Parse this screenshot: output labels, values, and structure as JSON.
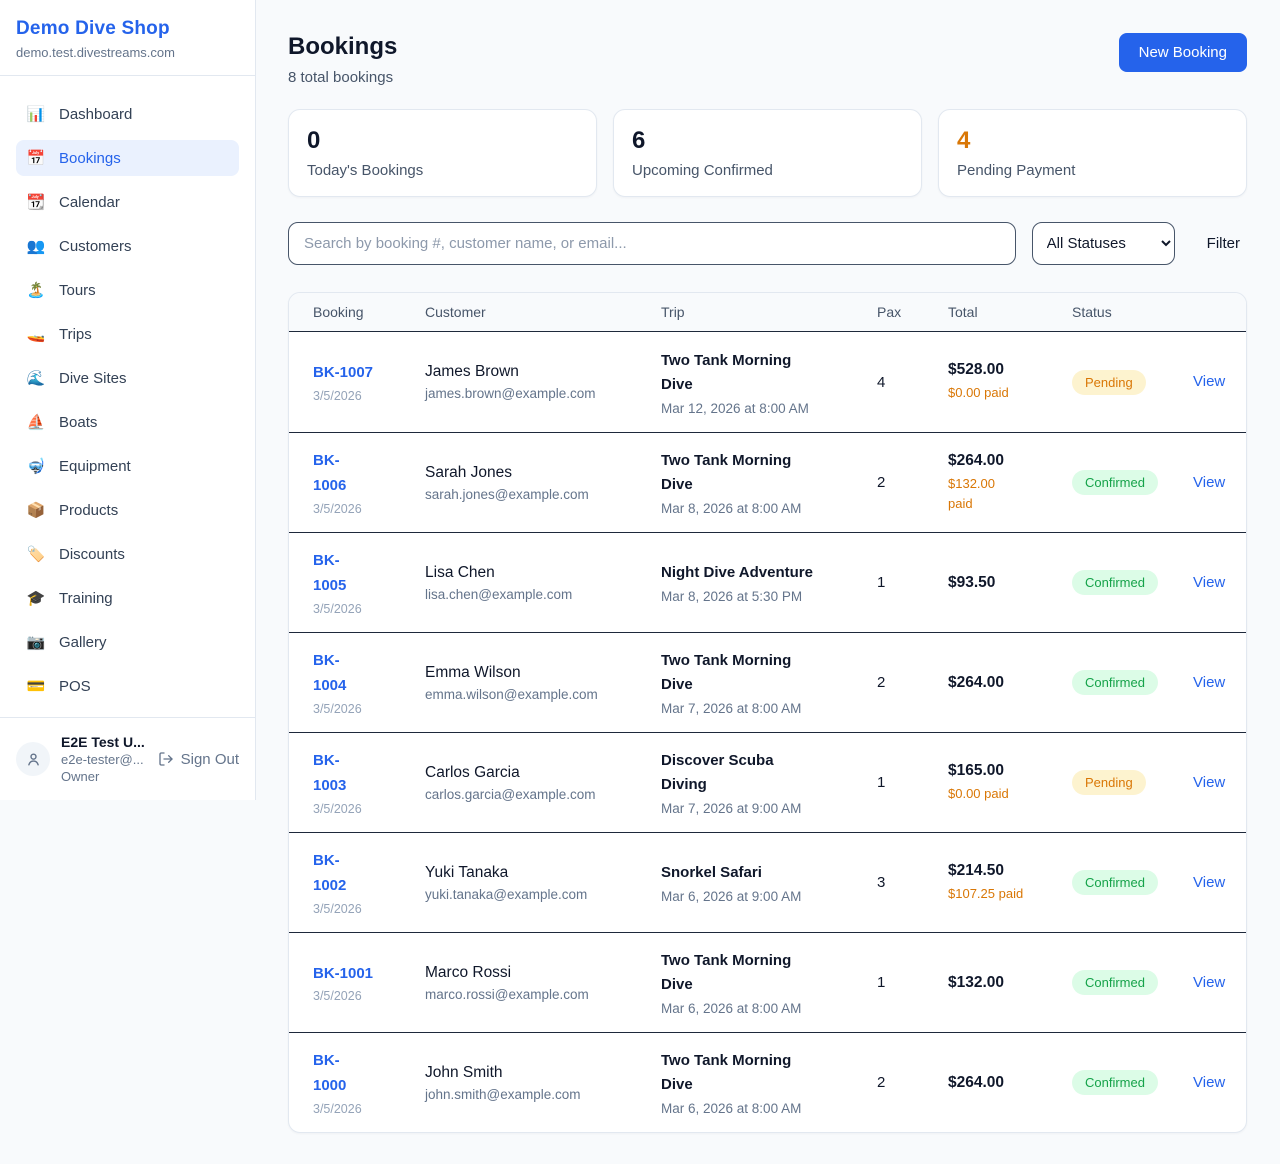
{
  "sidebar": {
    "brand": {
      "name": "Demo Dive Shop",
      "domain": "demo.test.divestreams.com"
    },
    "nav": [
      {
        "label": "Dashboard",
        "icon": "📊",
        "icon_name": "bar-chart-icon",
        "active": false
      },
      {
        "label": "Bookings",
        "icon": "📅",
        "icon_name": "calendar-icon",
        "active": true
      },
      {
        "label": "Calendar",
        "icon": "📆",
        "icon_name": "tear-off-calendar-icon",
        "active": false
      },
      {
        "label": "Customers",
        "icon": "👥",
        "icon_name": "people-icon",
        "active": false
      },
      {
        "label": "Tours",
        "icon": "🏝️",
        "icon_name": "island-icon",
        "active": false
      },
      {
        "label": "Trips",
        "icon": "🚤",
        "icon_name": "speedboat-icon",
        "active": false
      },
      {
        "label": "Dive Sites",
        "icon": "🌊",
        "icon_name": "wave-icon",
        "active": false
      },
      {
        "label": "Boats",
        "icon": "⛵",
        "icon_name": "sailboat-icon",
        "active": false
      },
      {
        "label": "Equipment",
        "icon": "🤿",
        "icon_name": "diving-mask-icon",
        "active": false
      },
      {
        "label": "Products",
        "icon": "📦",
        "icon_name": "package-icon",
        "active": false
      },
      {
        "label": "Discounts",
        "icon": "🏷️",
        "icon_name": "tag-icon",
        "active": false
      },
      {
        "label": "Training",
        "icon": "🎓",
        "icon_name": "graduation-cap-icon",
        "active": false
      },
      {
        "label": "Gallery",
        "icon": "📷",
        "icon_name": "camera-icon",
        "active": false
      },
      {
        "label": "POS",
        "icon": "💳",
        "icon_name": "credit-card-icon",
        "active": false
      }
    ],
    "user": {
      "name": "E2E Test U...",
      "email": "e2e-tester@...",
      "role": "Owner",
      "sign_out_label": "Sign Out"
    }
  },
  "header": {
    "title": "Bookings",
    "subtitle": "8 total bookings",
    "new_booking_label": "New Booking"
  },
  "stats": [
    {
      "value": "0",
      "label": "Today's Bookings",
      "color": "#0f172a"
    },
    {
      "value": "6",
      "label": "Upcoming Confirmed",
      "color": "#0f172a"
    },
    {
      "value": "4",
      "label": "Pending Payment",
      "color": "#d97706"
    }
  ],
  "filters": {
    "search_placeholder": "Search by booking #, customer name, or email...",
    "status_selected": "All Statuses",
    "filter_label": "Filter"
  },
  "table": {
    "columns": [
      "Booking",
      "Customer",
      "Trip",
      "Pax",
      "Total",
      "Status"
    ],
    "view_label": "View",
    "rows": [
      {
        "booking_id": "BK-1007",
        "booking_date": "3/5/2026",
        "customer_name": "James Brown",
        "customer_email": "james.brown@example.com",
        "trip_name": "Two Tank Morning\nDive",
        "trip_datetime": "Mar 12, 2026 at 8:00 AM",
        "pax": "4",
        "total": "$528.00",
        "paid": "$0.00 paid",
        "status": "Pending"
      },
      {
        "booking_id": "BK-\n1006",
        "booking_date": "3/5/2026",
        "customer_name": "Sarah Jones",
        "customer_email": "sarah.jones@example.com",
        "trip_name": "Two Tank Morning\nDive",
        "trip_datetime": "Mar 8, 2026 at 8:00 AM",
        "pax": "2",
        "total": "$264.00",
        "paid": "$132.00\npaid",
        "status": "Confirmed"
      },
      {
        "booking_id": "BK-\n1005",
        "booking_date": "3/5/2026",
        "customer_name": "Lisa Chen",
        "customer_email": "lisa.chen@example.com",
        "trip_name": "Night Dive Adventure",
        "trip_datetime": "Mar 8, 2026 at 5:30 PM",
        "pax": "1",
        "total": "$93.50",
        "paid": "",
        "status": "Confirmed"
      },
      {
        "booking_id": "BK-\n1004",
        "booking_date": "3/5/2026",
        "customer_name": "Emma Wilson",
        "customer_email": "emma.wilson@example.com",
        "trip_name": "Two Tank Morning\nDive",
        "trip_datetime": "Mar 7, 2026 at 8:00 AM",
        "pax": "2",
        "total": "$264.00",
        "paid": "",
        "status": "Confirmed"
      },
      {
        "booking_id": "BK-\n1003",
        "booking_date": "3/5/2026",
        "customer_name": "Carlos Garcia",
        "customer_email": "carlos.garcia@example.com",
        "trip_name": "Discover Scuba\nDiving",
        "trip_datetime": "Mar 7, 2026 at 9:00 AM",
        "pax": "1",
        "total": "$165.00",
        "paid": "$0.00 paid",
        "status": "Pending"
      },
      {
        "booking_id": "BK-\n1002",
        "booking_date": "3/5/2026",
        "customer_name": "Yuki Tanaka",
        "customer_email": "yuki.tanaka@example.com",
        "trip_name": "Snorkel Safari",
        "trip_datetime": "Mar 6, 2026 at 9:00 AM",
        "pax": "3",
        "total": "$214.50",
        "paid": "$107.25 paid",
        "status": "Confirmed"
      },
      {
        "booking_id": "BK-1001",
        "booking_date": "3/5/2026",
        "customer_name": "Marco Rossi",
        "customer_email": "marco.rossi@example.com",
        "trip_name": "Two Tank Morning\nDive",
        "trip_datetime": "Mar 6, 2026 at 8:00 AM",
        "pax": "1",
        "total": "$132.00",
        "paid": "",
        "status": "Confirmed"
      },
      {
        "booking_id": "BK-\n1000",
        "booking_date": "3/5/2026",
        "customer_name": "John Smith",
        "customer_email": "john.smith@example.com",
        "trip_name": "Two Tank Morning\nDive",
        "trip_datetime": "Mar 6, 2026 at 8:00 AM",
        "pax": "2",
        "total": "$264.00",
        "paid": "",
        "status": "Confirmed"
      }
    ]
  },
  "colors": {
    "accent_blue": "#2563eb",
    "pending_text": "#d97706",
    "pending_bg": "#fdf3cf",
    "confirmed_text": "#16a34a",
    "confirmed_bg": "#dcfce7"
  }
}
